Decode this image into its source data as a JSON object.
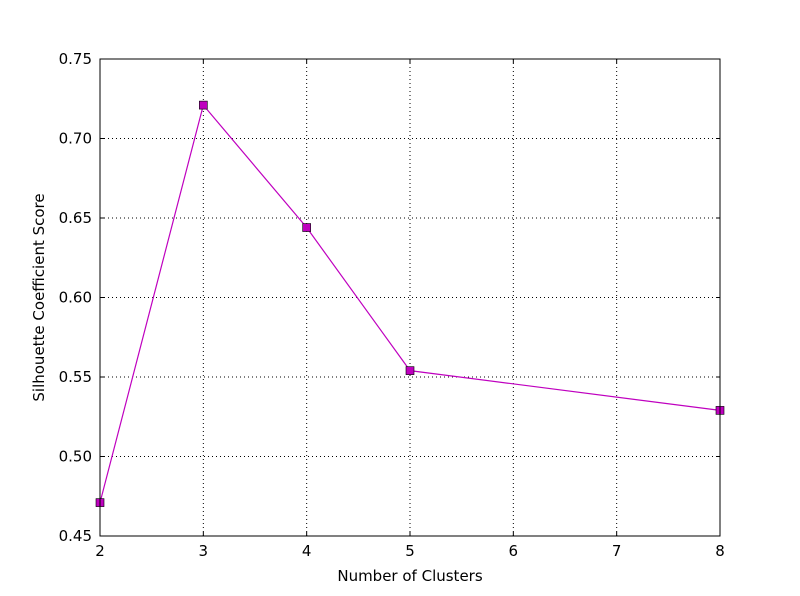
{
  "chart_data": {
    "type": "line",
    "title": "",
    "xlabel": "Number of Clusters",
    "ylabel": "Silhouette Coefficient Score",
    "xlim": [
      2,
      8
    ],
    "ylim": [
      0.45,
      0.75
    ],
    "xticks": [
      2,
      3,
      4,
      5,
      6,
      7,
      8
    ],
    "yticks": [
      0.45,
      0.5,
      0.55,
      0.6,
      0.65,
      0.7,
      0.75
    ],
    "ytick_format_decimals": 2,
    "grid": true,
    "legend": "none",
    "series": [
      {
        "x": [
          2,
          3,
          4,
          5,
          8
        ],
        "values": [
          0.471,
          0.721,
          0.644,
          0.554,
          0.529
        ],
        "color": "#bf00bf",
        "marker": "square"
      }
    ]
  }
}
